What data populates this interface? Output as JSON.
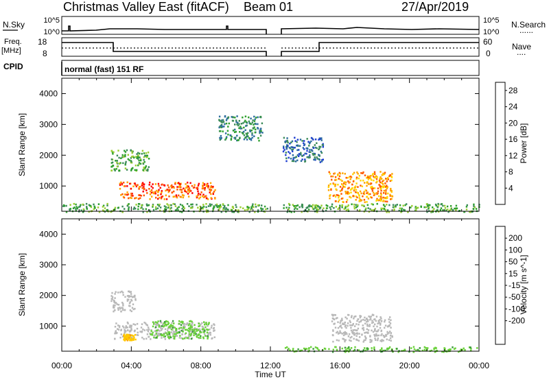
{
  "header": {
    "title": "Christmas Valley East (fitACF)",
    "beam": "Beam 01",
    "date": "27/Apr/2019"
  },
  "noise_panel": {
    "left_label": "N.Sky",
    "right_label": "N.Search",
    "ticks": [
      "10^5",
      "10^0"
    ],
    "dotted_legend": "......"
  },
  "freq_panel": {
    "left_label_1": "Freq.",
    "left_label_2": "[MHz]",
    "left_ticks": [
      "18",
      "8"
    ],
    "right_label": "Nave",
    "right_ticks": [
      "60",
      "0"
    ],
    "dotted_legend": "...."
  },
  "cpid": {
    "label": "CPID",
    "text": "normal (fast) 151 RF"
  },
  "colors": {
    "power": [
      "#0000ff",
      "#1f3fd0",
      "#2e6e9e",
      "#3d8c5a",
      "#2ea02e",
      "#9acd32",
      "#ffd700",
      "#ffa500",
      "#ff5a00",
      "#ff0000"
    ],
    "velocity_scale": [
      "#ff0000",
      "#ff4500",
      "#ff8c00",
      "#ffc800",
      "#c8c8c8",
      "#6ad13a",
      "#3a9a3a",
      "#2a7aa0",
      "#1a4ab0",
      "#0000c8"
    ],
    "ground_scatter": "#b8b8b8"
  },
  "chart_data": [
    {
      "type": "heatmap",
      "name": "power",
      "ylabel": "Slant Range [km]",
      "xlabel": "",
      "yticks": [
        "4000",
        "3000",
        "2000",
        "1000"
      ],
      "ylim": [
        180,
        4500
      ],
      "xlim": [
        0,
        24
      ],
      "colorbar": {
        "label": "Power [dB]",
        "ticks": [
          "28",
          "24",
          "20",
          "16",
          "12",
          "8",
          "4"
        ],
        "range": [
          0,
          30
        ]
      },
      "scatter_regions": [
        {
          "t0": 3.3,
          "t1": 8.8,
          "r0": 600,
          "r1": 1150,
          "dB": 26
        },
        {
          "t0": 2.8,
          "t1": 5.0,
          "r0": 1500,
          "r1": 2200,
          "dB": 12
        },
        {
          "t0": 15.3,
          "t1": 19.0,
          "r0": 500,
          "r1": 1500,
          "dB": 22
        },
        {
          "t0": 12.5,
          "t1": 15.0,
          "r0": 1800,
          "r1": 2600,
          "dB": 8
        },
        {
          "t0": 9.0,
          "t1": 11.5,
          "r0": 2500,
          "r1": 3300,
          "dB": 10
        },
        {
          "t0": 0.0,
          "t1": 24.0,
          "r0": 180,
          "r1": 450,
          "dB": 12
        }
      ],
      "data_gap": [
        11.8,
        12.7
      ]
    },
    {
      "type": "heatmap",
      "name": "velocity",
      "ylabel": "Slant Range [km]",
      "xlabel": "Time UT",
      "xticks": [
        "00:00",
        "04:00",
        "08:00",
        "12:00",
        "16:00",
        "20:00",
        "00:00"
      ],
      "yticks": [
        "4000",
        "3000",
        "2000",
        "1000"
      ],
      "ylim": [
        180,
        4500
      ],
      "xlim": [
        0,
        24
      ],
      "colorbar": {
        "label": "Velocity [m s^-1]",
        "ticks": [
          "200",
          "100",
          "50",
          "15",
          "-15",
          "-50",
          "-100",
          "-200"
        ]
      },
      "scatter_regions": [
        {
          "t0": 3.0,
          "t1": 8.8,
          "r0": 600,
          "r1": 1150,
          "kind": "ground"
        },
        {
          "t0": 5.0,
          "t1": 8.5,
          "r0": 600,
          "r1": 1200,
          "v": 30
        },
        {
          "t0": 2.8,
          "t1": 4.2,
          "r0": 1500,
          "r1": 2200,
          "kind": "ground"
        },
        {
          "t0": 15.5,
          "t1": 19.0,
          "r0": 500,
          "r1": 1400,
          "kind": "ground"
        },
        {
          "t0": 12.5,
          "t1": 24.0,
          "r0": 180,
          "r1": 350,
          "v": 30
        },
        {
          "t0": 3.5,
          "t1": 4.2,
          "r0": 550,
          "r1": 750,
          "v": -30
        }
      ],
      "data_gap": [
        11.8,
        12.7
      ]
    }
  ]
}
